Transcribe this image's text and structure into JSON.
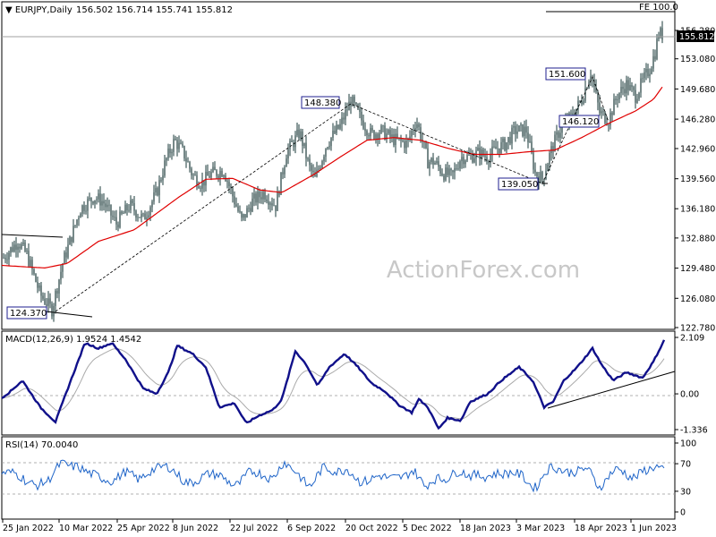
{
  "chart_data": {
    "type": "candlestick",
    "symbol_title": "EURJPY,Daily",
    "ohlc_text": "156.502 156.714 155.741 155.812",
    "last_price_label": "155.812",
    "fe_label": "FE 100.0",
    "watermark": "ActionForex.com",
    "price_axis": {
      "ticks": [
        "156.280",
        "153.080",
        "149.680",
        "146.280",
        "142.960",
        "139.560",
        "136.180",
        "132.880",
        "129.480",
        "126.080",
        "122.780"
      ],
      "ylim": [
        122.78,
        156.28
      ]
    },
    "x_ticks": [
      "25 Jan 2022",
      "10 Mar 2022",
      "25 Apr 2022",
      "8 Jun 2022",
      "22 Jul 2022",
      "6 Sep 2022",
      "20 Oct 2022",
      "5 Dec 2022",
      "18 Jan 2023",
      "3 Mar 2023",
      "18 Apr 2023",
      "1 Jun 2023"
    ],
    "price_waypoints": [
      [
        0,
        130.2
      ],
      [
        20,
        132.5
      ],
      [
        30,
        131.0
      ],
      [
        45,
        126.5
      ],
      [
        58,
        124.8
      ],
      [
        70,
        130.0
      ],
      [
        90,
        136.2
      ],
      [
        105,
        137.5
      ],
      [
        115,
        137.0
      ],
      [
        130,
        134.5
      ],
      [
        145,
        136.6
      ],
      [
        160,
        135.0
      ],
      [
        175,
        138.0
      ],
      [
        185,
        141.5
      ],
      [
        195,
        143.9
      ],
      [
        205,
        142.5
      ],
      [
        215,
        140.0
      ],
      [
        225,
        139.0
      ],
      [
        235,
        140.1
      ],
      [
        250,
        140.5
      ],
      [
        258,
        138.2
      ],
      [
        270,
        134.8
      ],
      [
        282,
        137.0
      ],
      [
        295,
        138.0
      ],
      [
        308,
        136.5
      ],
      [
        320,
        142.5
      ],
      [
        335,
        144.8
      ],
      [
        345,
        141.0
      ],
      [
        352,
        139.5
      ],
      [
        365,
        143.5
      ],
      [
        380,
        145.5
      ],
      [
        392,
        148.4
      ],
      [
        405,
        146.0
      ],
      [
        415,
        144.5
      ],
      [
        425,
        145.0
      ],
      [
        440,
        144.0
      ],
      [
        455,
        143.5
      ],
      [
        465,
        146.2
      ],
      [
        470,
        144.5
      ],
      [
        478,
        141.5
      ],
      [
        485,
        141.5
      ],
      [
        495,
        140.2
      ],
      [
        505,
        139.8
      ],
      [
        515,
        142.0
      ],
      [
        525,
        142.0
      ],
      [
        535,
        142.5
      ],
      [
        545,
        142.0
      ],
      [
        555,
        143.0
      ],
      [
        565,
        143.5
      ],
      [
        575,
        145.0
      ],
      [
        588,
        145.0
      ],
      [
        598,
        140.2
      ],
      [
        606,
        139.5
      ],
      [
        615,
        142.5
      ],
      [
        625,
        145.0
      ],
      [
        640,
        146.8
      ],
      [
        650,
        148.5
      ],
      [
        660,
        151.6
      ],
      [
        670,
        147.0
      ],
      [
        680,
        146.2
      ],
      [
        690,
        149.0
      ],
      [
        700,
        150.2
      ],
      [
        710,
        148.9
      ],
      [
        718,
        150.5
      ],
      [
        726,
        152.0
      ],
      [
        732,
        153.8
      ],
      [
        736,
        156.0
      ],
      [
        740,
        155.8
      ]
    ],
    "ma_waypoints": [
      [
        0,
        129.8
      ],
      [
        50,
        129.5
      ],
      [
        75,
        130.0
      ],
      [
        110,
        132.5
      ],
      [
        150,
        133.8
      ],
      [
        200,
        137.5
      ],
      [
        230,
        139.5
      ],
      [
        260,
        139.6
      ],
      [
        290,
        138.3
      ],
      [
        315,
        138.0
      ],
      [
        350,
        140.0
      ],
      [
        380,
        142.0
      ],
      [
        410,
        143.9
      ],
      [
        440,
        144.2
      ],
      [
        470,
        143.9
      ],
      [
        500,
        143.0
      ],
      [
        530,
        142.3
      ],
      [
        560,
        142.3
      ],
      [
        590,
        142.6
      ],
      [
        620,
        142.8
      ],
      [
        650,
        144.2
      ],
      [
        680,
        145.8
      ],
      [
        710,
        147.2
      ],
      [
        730,
        148.5
      ],
      [
        740,
        149.9
      ]
    ],
    "annotations": [
      "148.380",
      "151.600",
      "146.120",
      "139.050",
      "124.370"
    ],
    "macd": {
      "label": "MACD(12,26,9) 1.9524 1.4542",
      "ticks": [
        "2.109",
        "0.00",
        "-1.336"
      ],
      "ylim": [
        -1.336,
        2.109
      ],
      "macd_waypoints": [
        [
          0,
          -0.2
        ],
        [
          12,
          0.1
        ],
        [
          25,
          0.5
        ],
        [
          45,
          -0.5
        ],
        [
          62,
          -1.05
        ],
        [
          78,
          0.4
        ],
        [
          95,
          1.9
        ],
        [
          110,
          1.7
        ],
        [
          125,
          1.9
        ],
        [
          140,
          1.3
        ],
        [
          160,
          0.2
        ],
        [
          175,
          0.0
        ],
        [
          188,
          0.8
        ],
        [
          198,
          1.8
        ],
        [
          215,
          1.5
        ],
        [
          230,
          1.0
        ],
        [
          245,
          -0.5
        ],
        [
          262,
          -0.35
        ],
        [
          275,
          -1.1
        ],
        [
          290,
          -0.8
        ],
        [
          305,
          -0.6
        ],
        [
          315,
          -0.2
        ],
        [
          330,
          1.6
        ],
        [
          342,
          1.1
        ],
        [
          355,
          0.3
        ],
        [
          368,
          1.0
        ],
        [
          385,
          1.5
        ],
        [
          400,
          1.0
        ],
        [
          415,
          0.4
        ],
        [
          430,
          0.1
        ],
        [
          445,
          -0.4
        ],
        [
          460,
          -0.7
        ],
        [
          468,
          -0.2
        ],
        [
          478,
          -0.5
        ],
        [
          490,
          -1.3
        ],
        [
          500,
          -0.9
        ],
        [
          515,
          -1.0
        ],
        [
          525,
          -0.3
        ],
        [
          545,
          0.0
        ],
        [
          560,
          0.5
        ],
        [
          580,
          1.0
        ],
        [
          595,
          0.5
        ],
        [
          608,
          -0.5
        ],
        [
          618,
          -0.3
        ],
        [
          630,
          0.5
        ],
        [
          645,
          1.0
        ],
        [
          662,
          1.7
        ],
        [
          672,
          1.1
        ],
        [
          685,
          0.5
        ],
        [
          700,
          0.8
        ],
        [
          718,
          0.6
        ],
        [
          730,
          1.2
        ],
        [
          742,
          2.0
        ]
      ]
    },
    "rsi": {
      "label": "RSI(14) 70.0040",
      "ticks": [
        "100",
        "70",
        "30",
        "0"
      ],
      "ylim": [
        0,
        100
      ]
    }
  }
}
